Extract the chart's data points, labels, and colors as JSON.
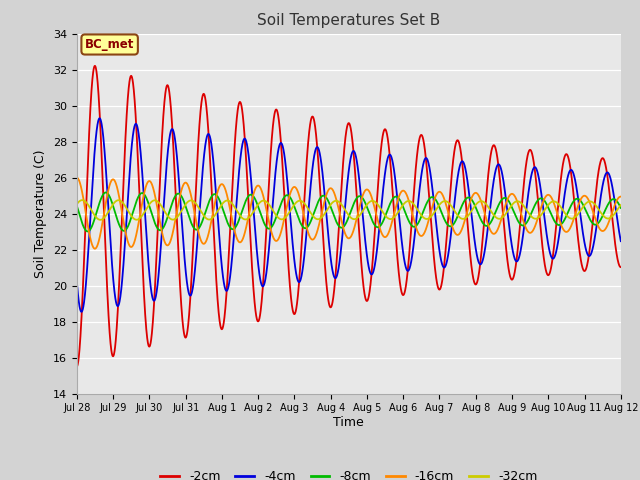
{
  "title": "Soil Temperatures Set B",
  "xlabel": "Time",
  "ylabel": "Soil Temperature (C)",
  "ylim": [
    14,
    34
  ],
  "background_color": "#d3d3d3",
  "plot_bg_color": "#e8e8e8",
  "annotation_text": "BC_met",
  "annotation_bg": "#ffff99",
  "annotation_border": "#8b4513",
  "xtick_labels": [
    "Jul 28",
    "Jul 29",
    "Jul 30",
    "Jul 31",
    "Aug 1",
    "Aug 2",
    "Aug 3",
    "Aug 4",
    "Aug 5",
    "Aug 6",
    "Aug 7",
    "Aug 8",
    "Aug 9",
    "Aug 10",
    "Aug 11",
    "Aug 12"
  ],
  "legend_labels": [
    "-2cm",
    "-4cm",
    "-8cm",
    "-16cm",
    "-32cm"
  ],
  "colors": {
    "-2cm": "#dd0000",
    "-4cm": "#0000dd",
    "-8cm": "#00bb00",
    "-16cm": "#ff8800",
    "-32cm": "#cccc00"
  },
  "series_params": {
    "-2cm": {
      "mean": 24.0,
      "amp0": 8.5,
      "damping": 0.07,
      "phase": 0.25,
      "period": 1.0
    },
    "-4cm": {
      "mean": 24.0,
      "amp0": 5.5,
      "damping": 0.06,
      "phase": 0.38,
      "period": 1.0
    },
    "-8cm": {
      "mean": 24.1,
      "amp0": 1.1,
      "damping": 0.03,
      "phase": 0.55,
      "period": 1.0
    },
    "-16cm": {
      "mean": 24.0,
      "amp0": 2.0,
      "damping": 0.05,
      "phase": 0.75,
      "period": 1.0
    },
    "-32cm": {
      "mean": 24.2,
      "amp0": 0.55,
      "damping": 0.01,
      "phase": 0.9,
      "period": 1.0
    }
  }
}
